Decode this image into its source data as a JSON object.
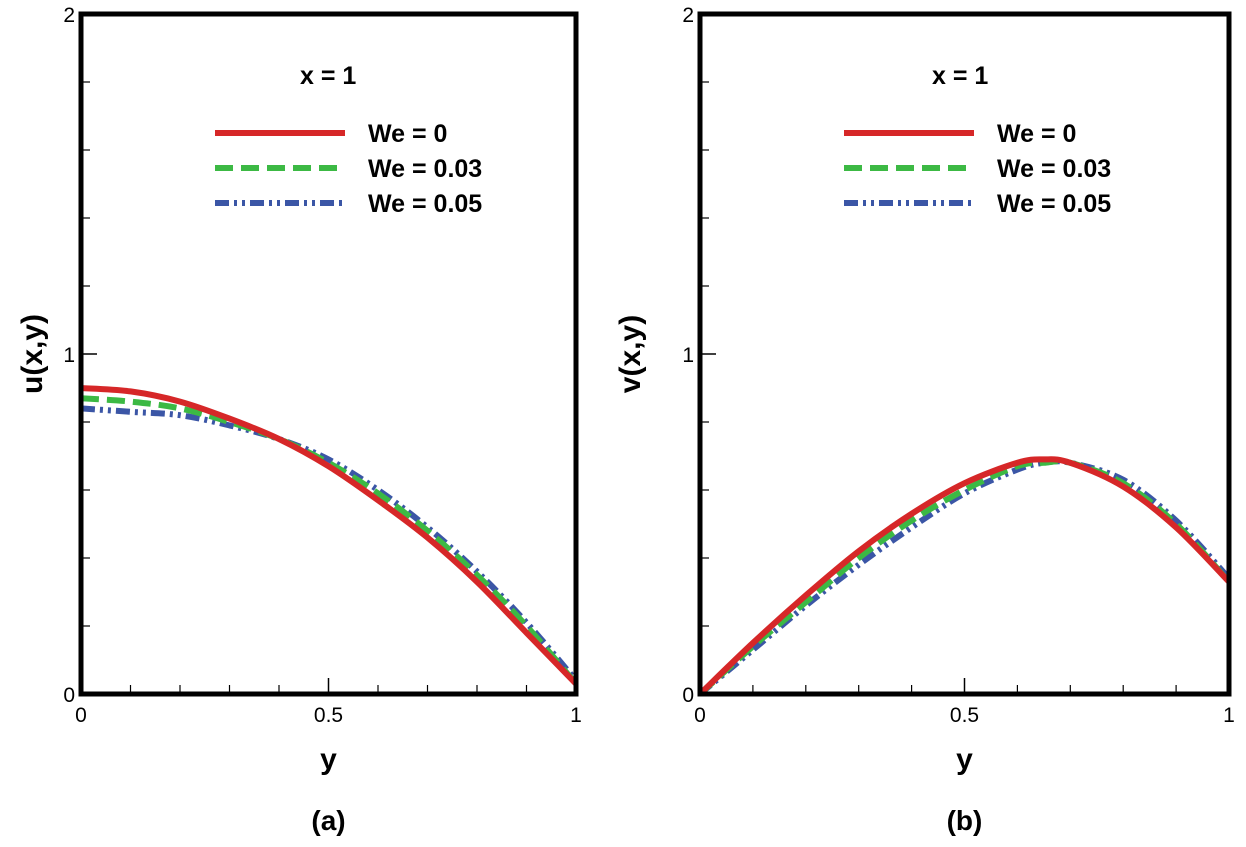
{
  "chart_data": [
    {
      "type": "line",
      "panel": "(a)",
      "annotation": "x = 1",
      "xlabel": "y",
      "ylabel": "u(x,y)",
      "xlim": [
        0,
        1
      ],
      "ylim": [
        0,
        2
      ],
      "xticks": [
        "0",
        "0.5",
        "1"
      ],
      "yticks": [
        "0",
        "1",
        "2"
      ],
      "legend_position": "top-right",
      "x": [
        0,
        0.1,
        0.2,
        0.3,
        0.4,
        0.5,
        0.6,
        0.7,
        0.8,
        0.9,
        1.0
      ],
      "series": [
        {
          "name": "We = 0",
          "color": "#d62728",
          "style": "solid",
          "values": [
            0.9,
            0.89,
            0.86,
            0.81,
            0.75,
            0.67,
            0.57,
            0.46,
            0.33,
            0.18,
            0.03
          ]
        },
        {
          "name": "We = 0.03",
          "color": "#3cb944",
          "style": "dashed",
          "values": [
            0.87,
            0.86,
            0.84,
            0.8,
            0.75,
            0.68,
            0.59,
            0.48,
            0.35,
            0.2,
            0.03
          ]
        },
        {
          "name": "We = 0.05",
          "color": "#3b56a6",
          "style": "dashdot",
          "values": [
            0.84,
            0.83,
            0.82,
            0.79,
            0.75,
            0.69,
            0.6,
            0.49,
            0.36,
            0.21,
            0.04
          ]
        }
      ]
    },
    {
      "type": "line",
      "panel": "(b)",
      "annotation": "x = 1",
      "xlabel": "y",
      "ylabel": "v(x,y)",
      "xlim": [
        0,
        1
      ],
      "ylim": [
        0,
        2
      ],
      "xticks": [
        "0",
        "0.5",
        "1"
      ],
      "yticks": [
        "0",
        "1",
        "2"
      ],
      "legend_position": "top-right",
      "x": [
        0,
        0.1,
        0.2,
        0.3,
        0.4,
        0.5,
        0.6,
        0.65,
        0.7,
        0.8,
        0.9,
        1.0
      ],
      "series": [
        {
          "name": "We = 0",
          "color": "#d62728",
          "style": "solid",
          "values": [
            0,
            0.15,
            0.29,
            0.42,
            0.53,
            0.62,
            0.68,
            0.69,
            0.68,
            0.61,
            0.49,
            0.33
          ]
        },
        {
          "name": "We = 0.03",
          "color": "#3cb944",
          "style": "dashed",
          "values": [
            0,
            0.14,
            0.27,
            0.4,
            0.51,
            0.6,
            0.67,
            0.68,
            0.68,
            0.62,
            0.5,
            0.33
          ]
        },
        {
          "name": "We = 0.05",
          "color": "#3b56a6",
          "style": "dashdot",
          "values": [
            0,
            0.13,
            0.26,
            0.38,
            0.49,
            0.59,
            0.66,
            0.68,
            0.68,
            0.63,
            0.51,
            0.34
          ]
        }
      ]
    }
  ]
}
